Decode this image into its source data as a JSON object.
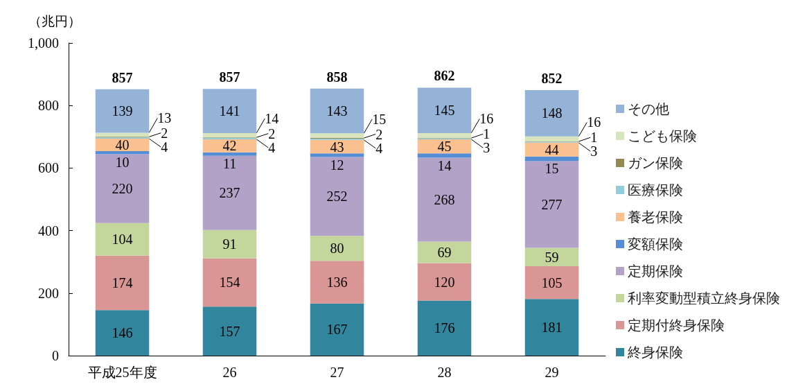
{
  "chart_data": {
    "type": "bar",
    "ylabel": "（兆円）",
    "categories": [
      "平成25年度",
      "26",
      "27",
      "28",
      "29"
    ],
    "series": [
      {
        "name": "終身保険",
        "color": "#31859c",
        "values": [
          146,
          157,
          167,
          176,
          181
        ]
      },
      {
        "name": "定期付終身保険",
        "color": "#d99694",
        "values": [
          174,
          154,
          136,
          120,
          105
        ]
      },
      {
        "name": "利率変動型積立終身保険",
        "color": "#c3d69b",
        "values": [
          104,
          91,
          80,
          69,
          59
        ]
      },
      {
        "name": "定期保険",
        "color": "#b3a2c7",
        "values": [
          220,
          237,
          252,
          268,
          277
        ]
      },
      {
        "name": "変額保険",
        "color": "#558ed5",
        "values": [
          10,
          11,
          12,
          14,
          15
        ]
      },
      {
        "name": "養老保険",
        "color": "#fac090",
        "values": [
          40,
          42,
          43,
          45,
          44
        ]
      },
      {
        "name": "医療保険",
        "color": "#93cddd",
        "values": [
          4,
          4,
          4,
          3,
          3
        ]
      },
      {
        "name": "ガン保険",
        "color": "#938953",
        "values": [
          2,
          2,
          2,
          1,
          1
        ]
      },
      {
        "name": "こども保険",
        "color": "#d7e4bd",
        "values": [
          13,
          14,
          15,
          16,
          16
        ]
      },
      {
        "name": "その他",
        "color": "#95b3d7",
        "values": [
          139,
          141,
          143,
          145,
          148
        ]
      }
    ],
    "stacked": true,
    "data_labels": true,
    "totals": [
      "857",
      "857",
      "858",
      "862",
      "852"
    ],
    "ylim": [
      0,
      1000
    ],
    "yticks": [
      0,
      200,
      400,
      600,
      800,
      {
        "value": 1000,
        "label": "1,000"
      }
    ],
    "legend": "right"
  }
}
